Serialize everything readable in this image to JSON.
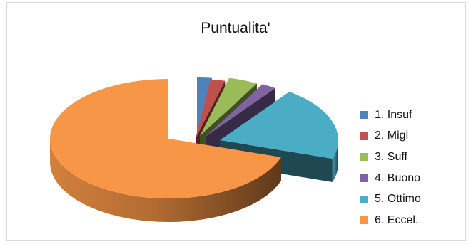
{
  "chart_data": {
    "type": "pie",
    "title": "Puntualita'",
    "categories": [
      "1. Insuf",
      "2. Migl",
      "3. Suff",
      "4. Buono",
      "5. Ottimo",
      "6. Eccel."
    ],
    "values": [
      2,
      2,
      4,
      2,
      20,
      70
    ],
    "colors": [
      "#4F81BD",
      "#C0504D",
      "#9BBB59",
      "#8064A2",
      "#4BACC6",
      "#F79646"
    ],
    "exploded": true,
    "three_d": true,
    "legend_position": "right"
  }
}
